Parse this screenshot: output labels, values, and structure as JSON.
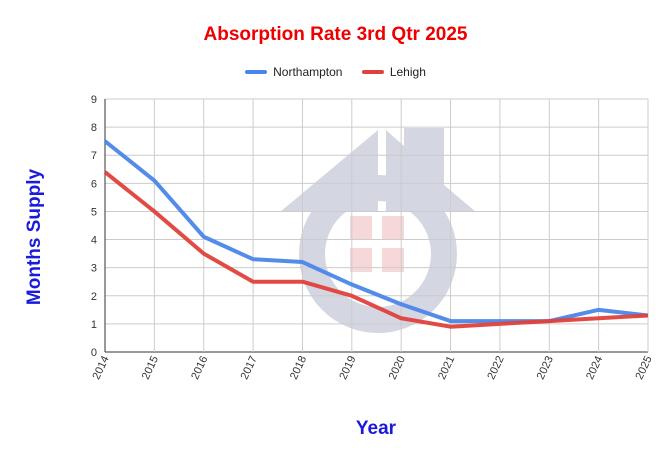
{
  "chart_data": {
    "type": "line",
    "title": "Absorption Rate 3rd Qtr 2025",
    "xlabel": "Year",
    "ylabel": "Months Supply",
    "categories": [
      "2014",
      "2015",
      "2016",
      "2017",
      "2018",
      "2019",
      "2020",
      "2021",
      "2022",
      "2023",
      "2024",
      "2025"
    ],
    "ylim": [
      0,
      9
    ],
    "yticks": [
      "0",
      "1",
      "2",
      "3",
      "4",
      "5",
      "6",
      "7",
      "8",
      "9"
    ],
    "grid": true,
    "legend": "top",
    "series": [
      {
        "name": "Northampton",
        "color": "#4a86e8",
        "values": [
          7.5,
          6.1,
          4.1,
          3.3,
          3.2,
          2.4,
          1.7,
          1.1,
          1.1,
          1.1,
          1.5,
          1.3
        ]
      },
      {
        "name": "Lehigh",
        "color": "#e0413a",
        "values": [
          6.4,
          5.0,
          3.5,
          2.5,
          2.5,
          2.0,
          1.2,
          0.9,
          1.0,
          1.1,
          1.2,
          1.3
        ]
      }
    ]
  }
}
